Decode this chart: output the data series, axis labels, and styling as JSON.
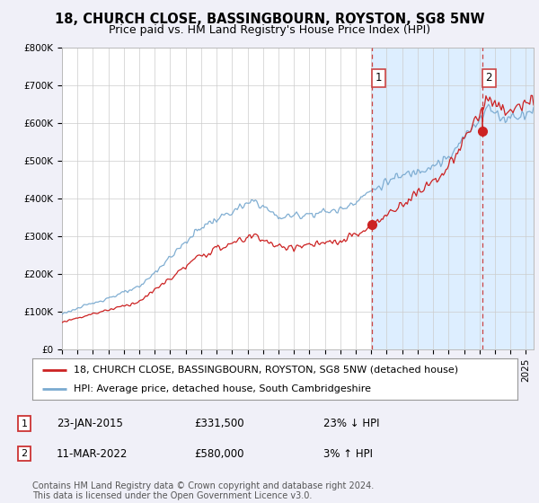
{
  "title": "18, CHURCH CLOSE, BASSINGBOURN, ROYSTON, SG8 5NW",
  "subtitle": "Price paid vs. HM Land Registry's House Price Index (HPI)",
  "yticks": [
    0,
    100000,
    200000,
    300000,
    400000,
    500000,
    600000,
    700000,
    800000
  ],
  "ytick_labels": [
    "£0",
    "£100K",
    "£200K",
    "£300K",
    "£400K",
    "£500K",
    "£600K",
    "£700K",
    "£800K"
  ],
  "ylim": [
    0,
    800000
  ],
  "xlim_start": 1995.0,
  "xlim_end": 2025.5,
  "hpi_color": "#7aaad0",
  "price_color": "#cc2222",
  "sale1_year": 2015.07,
  "sale1_price": 331500,
  "sale2_year": 2022.19,
  "sale2_price": 580000,
  "vline_color": "#cc4444",
  "background_color": "#f0f0f8",
  "plot_bg_color": "#ffffff",
  "shade_color": "#ddeeff",
  "legend_line1": "18, CHURCH CLOSE, BASSINGBOURN, ROYSTON, SG8 5NW (detached house)",
  "legend_line2": "HPI: Average price, detached house, South Cambridgeshire",
  "annot1_label": "1",
  "annot1_date": "23-JAN-2015",
  "annot1_price": "£331,500",
  "annot1_hpi": "23% ↓ HPI",
  "annot2_label": "2",
  "annot2_date": "11-MAR-2022",
  "annot2_price": "£580,000",
  "annot2_hpi": "3% ↑ HPI",
  "footer": "Contains HM Land Registry data © Crown copyright and database right 2024.\nThis data is licensed under the Open Government Licence v3.0.",
  "title_fontsize": 10.5,
  "subtitle_fontsize": 9,
  "tick_fontsize": 7.5,
  "legend_fontsize": 8,
  "annot_fontsize": 8.5,
  "footer_fontsize": 7
}
